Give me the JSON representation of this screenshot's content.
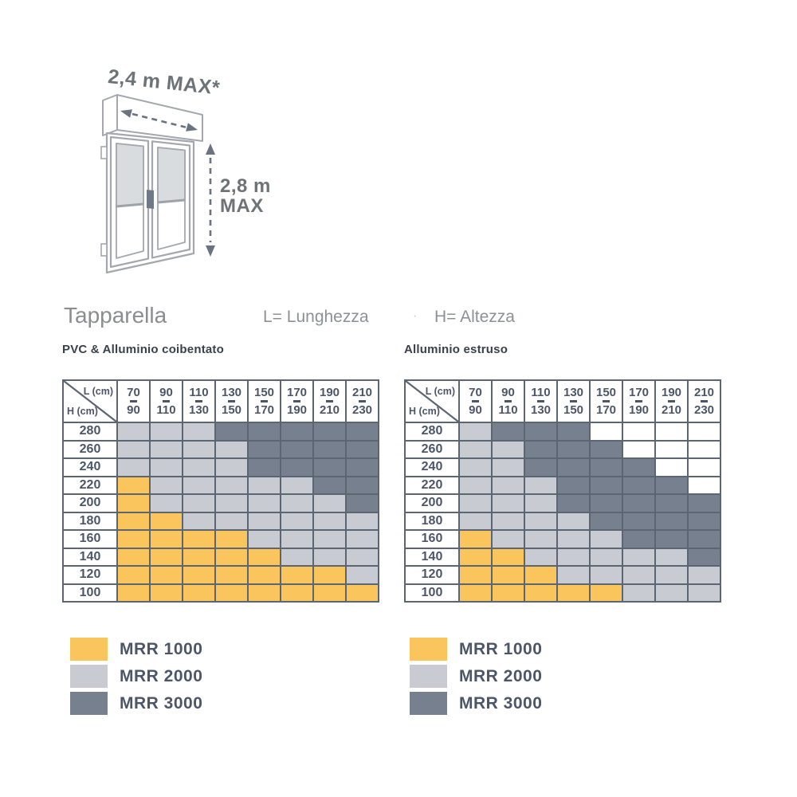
{
  "diagram": {
    "width_label": "2,4 m MAX*",
    "height_label": "2,8 m\nMAX"
  },
  "captions": {
    "title": "Tapparella",
    "length_label": "L= Lunghezza",
    "separator": "·",
    "height_label": "H= Altezza"
  },
  "colors": {
    "background": "#FFFFFF",
    "grid": "#5C6572",
    "header_text": "#4C5669",
    "by_model": {
      "MRR 1000": "#FBC55E",
      "MRR 2000": "#C8CCD2",
      "MRR 3000": "#76808E"
    },
    "empty_cell": "#FFFFFF"
  },
  "tables": [
    {
      "title": "PVC & Alluminio coibentato",
      "corner": {
        "top_right": "L (cm)",
        "bottom_left": "H (cm)"
      },
      "legend": [
        "MRR 1000",
        "MRR 2000",
        "MRR 3000"
      ]
    },
    {
      "title": "Alluminio estruso",
      "corner": {
        "top_right": "L (cm)",
        "bottom_left": "H (cm)"
      },
      "legend": [
        "MRR 1000",
        "MRR 2000",
        "MRR 3000"
      ]
    }
  ],
  "chart_data": [
    {
      "type": "heatmap",
      "title": "PVC & Alluminio coibentato",
      "xlabel": "L (cm)",
      "ylabel": "H (cm)",
      "x_categories": [
        "70-90",
        "90-110",
        "110-130",
        "130-150",
        "150-170",
        "170-190",
        "190-210",
        "210-230"
      ],
      "y_categories": [
        "280",
        "260",
        "240",
        "220",
        "200",
        "180",
        "160",
        "140",
        "120",
        "100"
      ],
      "legend": [
        "MRR 1000",
        "MRR 2000",
        "MRR 3000"
      ],
      "values": [
        [
          "MRR 2000",
          "MRR 2000",
          "MRR 2000",
          "MRR 3000",
          "MRR 3000",
          "MRR 3000",
          "MRR 3000",
          "MRR 3000"
        ],
        [
          "MRR 2000",
          "MRR 2000",
          "MRR 2000",
          "MRR 2000",
          "MRR 3000",
          "MRR 3000",
          "MRR 3000",
          "MRR 3000"
        ],
        [
          "MRR 2000",
          "MRR 2000",
          "MRR 2000",
          "MRR 2000",
          "MRR 3000",
          "MRR 3000",
          "MRR 3000",
          "MRR 3000"
        ],
        [
          "MRR 1000",
          "MRR 2000",
          "MRR 2000",
          "MRR 2000",
          "MRR 2000",
          "MRR 2000",
          "MRR 3000",
          "MRR 3000"
        ],
        [
          "MRR 1000",
          "MRR 2000",
          "MRR 2000",
          "MRR 2000",
          "MRR 2000",
          "MRR 2000",
          "MRR 2000",
          "MRR 3000"
        ],
        [
          "MRR 1000",
          "MRR 1000",
          "MRR 2000",
          "MRR 2000",
          "MRR 2000",
          "MRR 2000",
          "MRR 2000",
          "MRR 2000"
        ],
        [
          "MRR 1000",
          "MRR 1000",
          "MRR 1000",
          "MRR 1000",
          "MRR 2000",
          "MRR 2000",
          "MRR 2000",
          "MRR 2000"
        ],
        [
          "MRR 1000",
          "MRR 1000",
          "MRR 1000",
          "MRR 1000",
          "MRR 1000",
          "MRR 2000",
          "MRR 2000",
          "MRR 2000"
        ],
        [
          "MRR 1000",
          "MRR 1000",
          "MRR 1000",
          "MRR 1000",
          "MRR 1000",
          "MRR 1000",
          "MRR 1000",
          "MRR 2000"
        ],
        [
          "MRR 1000",
          "MRR 1000",
          "MRR 1000",
          "MRR 1000",
          "MRR 1000",
          "MRR 1000",
          "MRR 1000",
          "MRR 1000"
        ]
      ]
    },
    {
      "type": "heatmap",
      "title": "Alluminio estruso",
      "xlabel": "L (cm)",
      "ylabel": "H (cm)",
      "x_categories": [
        "70-90",
        "90-110",
        "110-130",
        "130-150",
        "150-170",
        "170-190",
        "190-210",
        "210-230"
      ],
      "y_categories": [
        "280",
        "260",
        "240",
        "220",
        "200",
        "180",
        "160",
        "140",
        "120",
        "100"
      ],
      "legend": [
        "MRR 1000",
        "MRR 2000",
        "MRR 3000"
      ],
      "values": [
        [
          "MRR 2000",
          "MRR 3000",
          "MRR 3000",
          "MRR 3000",
          null,
          null,
          null,
          null
        ],
        [
          "MRR 2000",
          "MRR 2000",
          "MRR 3000",
          "MRR 3000",
          "MRR 3000",
          null,
          null,
          null
        ],
        [
          "MRR 2000",
          "MRR 2000",
          "MRR 3000",
          "MRR 3000",
          "MRR 3000",
          "MRR 3000",
          null,
          null
        ],
        [
          "MRR 2000",
          "MRR 2000",
          "MRR 2000",
          "MRR 3000",
          "MRR 3000",
          "MRR 3000",
          "MRR 3000",
          null
        ],
        [
          "MRR 2000",
          "MRR 2000",
          "MRR 2000",
          "MRR 3000",
          "MRR 3000",
          "MRR 3000",
          "MRR 3000",
          "MRR 3000"
        ],
        [
          "MRR 2000",
          "MRR 2000",
          "MRR 2000",
          "MRR 2000",
          "MRR 3000",
          "MRR 3000",
          "MRR 3000",
          "MRR 3000"
        ],
        [
          "MRR 1000",
          "MRR 2000",
          "MRR 2000",
          "MRR 2000",
          "MRR 2000",
          "MRR 3000",
          "MRR 3000",
          "MRR 3000"
        ],
        [
          "MRR 1000",
          "MRR 1000",
          "MRR 2000",
          "MRR 2000",
          "MRR 2000",
          "MRR 2000",
          "MRR 2000",
          "MRR 3000"
        ],
        [
          "MRR 1000",
          "MRR 1000",
          "MRR 1000",
          "MRR 2000",
          "MRR 2000",
          "MRR 2000",
          "MRR 2000",
          "MRR 2000"
        ],
        [
          "MRR 1000",
          "MRR 1000",
          "MRR 1000",
          "MRR 1000",
          "MRR 1000",
          "MRR 2000",
          "MRR 2000",
          "MRR 2000"
        ]
      ]
    }
  ]
}
